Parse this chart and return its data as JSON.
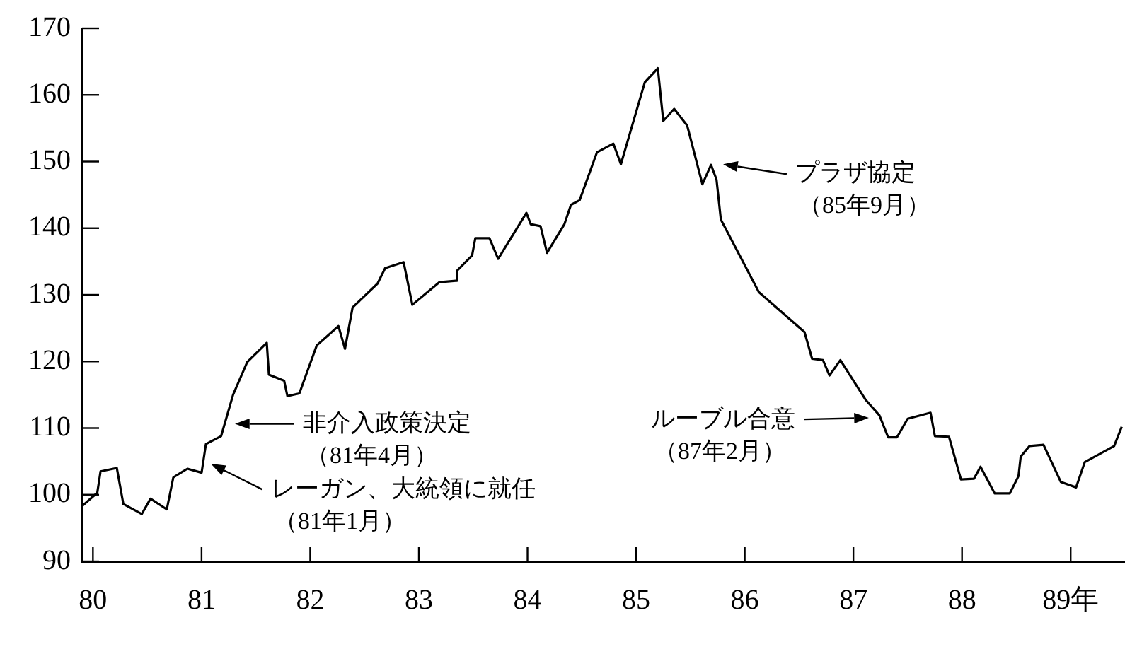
{
  "chart_data": {
    "type": "line",
    "x": [
      79.9,
      80.04,
      80.07,
      80.22,
      80.28,
      80.45,
      80.53,
      80.68,
      80.74,
      80.87,
      81.0,
      81.04,
      81.18,
      81.29,
      81.42,
      81.6,
      81.62,
      81.76,
      81.79,
      81.9,
      82.06,
      82.26,
      82.32,
      82.39,
      82.62,
      82.69,
      82.86,
      82.94,
      83.19,
      83.34,
      83.35,
      83.49,
      83.52,
      83.65,
      83.73,
      83.99,
      84.03,
      84.12,
      84.18,
      84.34,
      84.4,
      84.48,
      84.64,
      84.79,
      84.86,
      85.08,
      85.2,
      85.25,
      85.35,
      85.47,
      85.61,
      85.69,
      85.74,
      85.78,
      86.13,
      86.55,
      86.62,
      86.72,
      86.78,
      86.88,
      87.11,
      87.24,
      87.32,
      87.4,
      87.5,
      87.71,
      87.75,
      87.88,
      87.99,
      88.11,
      88.17,
      88.3,
      88.44,
      88.52,
      88.54,
      88.62,
      88.75,
      88.91,
      89.05,
      89.13,
      89.4,
      89.47
    ],
    "values": [
      98.3,
      100.3,
      103.5,
      104,
      98.6,
      97.1,
      99.4,
      97.8,
      102.6,
      103.9,
      103.3,
      107.6,
      108.8,
      115,
      119.9,
      122.8,
      118,
      117.1,
      114.8,
      115.2,
      122.4,
      125.3,
      121.9,
      128.1,
      131.7,
      134,
      134.9,
      128.5,
      131.9,
      132.1,
      133.6,
      135.9,
      138.5,
      138.5,
      135.4,
      142.3,
      140.6,
      140.3,
      136.3,
      140.6,
      143.5,
      144.2,
      151.4,
      152.7,
      149.6,
      161.9,
      164,
      156.1,
      157.9,
      155.4,
      146.6,
      149.5,
      147.3,
      141.3,
      130.4,
      124.4,
      120.4,
      120.2,
      117.9,
      120.2,
      114.3,
      111.9,
      108.6,
      108.6,
      111.4,
      112.3,
      108.8,
      108.7,
      102.3,
      102.4,
      104.2,
      100.2,
      100.2,
      102.8,
      105.7,
      107.3,
      107.5,
      101.9,
      101.1,
      104.9,
      107.3,
      110.2
    ],
    "color": "#000000",
    "xlim": [
      79.9,
      89.5
    ],
    "xticks": [
      80,
      81,
      82,
      83,
      84,
      85,
      86,
      87,
      88,
      {
        "value": 89,
        "label": "89年"
      }
    ],
    "ylim": [
      90,
      170
    ],
    "yticks": [
      90,
      100,
      110,
      120,
      130,
      140,
      150,
      160,
      170
    ],
    "annotations": [
      {
        "text": "レーガン、大統領に就任（81年1月）",
        "x": 81.04,
        "y": 105
      },
      "非介入政策決定（81年4月）",
      "プラザ協定（85年9月）",
      "ルーブル合意（87年2月）"
    ]
  }
}
